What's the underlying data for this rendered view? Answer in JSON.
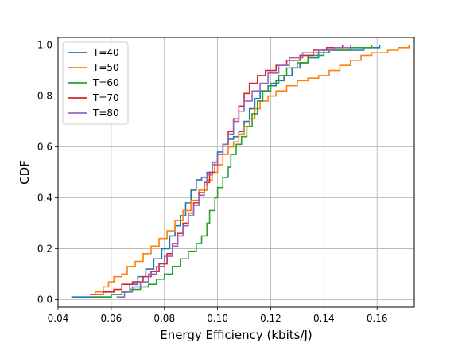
{
  "chart_data": {
    "type": "line",
    "step": true,
    "title": "",
    "xlabel": "Energy Efficiency (kbits/J)",
    "ylabel": "CDF",
    "xlim": [
      0.04,
      0.174
    ],
    "ylim": [
      -0.03,
      1.03
    ],
    "xticks": [
      "0.04",
      "0.06",
      "0.08",
      "0.10",
      "0.12",
      "0.14",
      "0.16"
    ],
    "yticks": [
      "0.0",
      "0.2",
      "0.4",
      "0.6",
      "0.8",
      "1.0"
    ],
    "grid": true,
    "legend_position": "top-left",
    "series": [
      {
        "name": "T=40",
        "color": "#1f77b4",
        "points": [
          [
            0.045,
            0.01
          ],
          [
            0.057,
            0.01
          ],
          [
            0.06,
            0.02
          ],
          [
            0.064,
            0.03
          ],
          [
            0.067,
            0.06
          ],
          [
            0.07,
            0.09
          ],
          [
            0.073,
            0.12
          ],
          [
            0.076,
            0.16
          ],
          [
            0.079,
            0.2
          ],
          [
            0.082,
            0.25
          ],
          [
            0.084,
            0.29
          ],
          [
            0.086,
            0.33
          ],
          [
            0.088,
            0.38
          ],
          [
            0.09,
            0.43
          ],
          [
            0.092,
            0.47
          ],
          [
            0.094,
            0.48
          ],
          [
            0.096,
            0.5
          ],
          [
            0.098,
            0.54
          ],
          [
            0.1,
            0.58
          ],
          [
            0.102,
            0.61
          ],
          [
            0.104,
            0.63
          ],
          [
            0.106,
            0.64
          ],
          [
            0.108,
            0.66
          ],
          [
            0.11,
            0.7
          ],
          [
            0.112,
            0.75
          ],
          [
            0.114,
            0.79
          ],
          [
            0.116,
            0.82
          ],
          [
            0.119,
            0.84
          ],
          [
            0.122,
            0.86
          ],
          [
            0.125,
            0.88
          ],
          [
            0.128,
            0.91
          ],
          [
            0.131,
            0.93
          ],
          [
            0.134,
            0.95
          ],
          [
            0.138,
            0.97
          ],
          [
            0.142,
            0.98
          ],
          [
            0.15,
            0.98
          ],
          [
            0.155,
            0.99
          ],
          [
            0.161,
            1.0
          ]
        ]
      },
      {
        "name": "T=50",
        "color": "#ff7f0e",
        "points": [
          [
            0.052,
            0.02
          ],
          [
            0.054,
            0.03
          ],
          [
            0.057,
            0.05
          ],
          [
            0.059,
            0.07
          ],
          [
            0.061,
            0.09
          ],
          [
            0.064,
            0.1
          ],
          [
            0.066,
            0.13
          ],
          [
            0.069,
            0.15
          ],
          [
            0.072,
            0.18
          ],
          [
            0.075,
            0.21
          ],
          [
            0.078,
            0.24
          ],
          [
            0.081,
            0.27
          ],
          [
            0.084,
            0.31
          ],
          [
            0.087,
            0.35
          ],
          [
            0.09,
            0.39
          ],
          [
            0.093,
            0.43
          ],
          [
            0.096,
            0.47
          ],
          [
            0.098,
            0.5
          ],
          [
            0.1,
            0.53
          ],
          [
            0.102,
            0.57
          ],
          [
            0.104,
            0.6
          ],
          [
            0.106,
            0.62
          ],
          [
            0.108,
            0.65
          ],
          [
            0.11,
            0.68
          ],
          [
            0.112,
            0.71
          ],
          [
            0.114,
            0.75
          ],
          [
            0.116,
            0.78
          ],
          [
            0.119,
            0.8
          ],
          [
            0.122,
            0.82
          ],
          [
            0.126,
            0.84
          ],
          [
            0.13,
            0.86
          ],
          [
            0.134,
            0.87
          ],
          [
            0.138,
            0.88
          ],
          [
            0.142,
            0.9
          ],
          [
            0.146,
            0.92
          ],
          [
            0.15,
            0.94
          ],
          [
            0.154,
            0.96
          ],
          [
            0.158,
            0.97
          ],
          [
            0.164,
            0.98
          ],
          [
            0.168,
            0.99
          ],
          [
            0.172,
            1.0
          ]
        ]
      },
      {
        "name": "T=60",
        "color": "#2ca02c",
        "points": [
          [
            0.053,
            0.01
          ],
          [
            0.06,
            0.02
          ],
          [
            0.064,
            0.03
          ],
          [
            0.067,
            0.04
          ],
          [
            0.071,
            0.05
          ],
          [
            0.074,
            0.06
          ],
          [
            0.077,
            0.08
          ],
          [
            0.08,
            0.1
          ],
          [
            0.083,
            0.13
          ],
          [
            0.086,
            0.16
          ],
          [
            0.089,
            0.19
          ],
          [
            0.092,
            0.22
          ],
          [
            0.094,
            0.25
          ],
          [
            0.096,
            0.3
          ],
          [
            0.097,
            0.35
          ],
          [
            0.099,
            0.4
          ],
          [
            0.1,
            0.44
          ],
          [
            0.102,
            0.48
          ],
          [
            0.104,
            0.52
          ],
          [
            0.105,
            0.57
          ],
          [
            0.107,
            0.61
          ],
          [
            0.109,
            0.64
          ],
          [
            0.111,
            0.68
          ],
          [
            0.113,
            0.73
          ],
          [
            0.115,
            0.78
          ],
          [
            0.117,
            0.82
          ],
          [
            0.12,
            0.85
          ],
          [
            0.123,
            0.88
          ],
          [
            0.126,
            0.91
          ],
          [
            0.13,
            0.93
          ],
          [
            0.134,
            0.96
          ],
          [
            0.14,
            0.98
          ],
          [
            0.15,
            0.99
          ],
          [
            0.158,
            1.0
          ]
        ]
      },
      {
        "name": "T=70",
        "color": "#d62728",
        "points": [
          [
            0.052,
            0.02
          ],
          [
            0.057,
            0.03
          ],
          [
            0.061,
            0.04
          ],
          [
            0.064,
            0.06
          ],
          [
            0.068,
            0.07
          ],
          [
            0.072,
            0.09
          ],
          [
            0.075,
            0.11
          ],
          [
            0.078,
            0.14
          ],
          [
            0.081,
            0.18
          ],
          [
            0.083,
            0.22
          ],
          [
            0.085,
            0.26
          ],
          [
            0.087,
            0.3
          ],
          [
            0.089,
            0.34
          ],
          [
            0.091,
            0.38
          ],
          [
            0.093,
            0.42
          ],
          [
            0.095,
            0.46
          ],
          [
            0.097,
            0.5
          ],
          [
            0.099,
            0.54
          ],
          [
            0.1,
            0.57
          ],
          [
            0.102,
            0.61
          ],
          [
            0.104,
            0.66
          ],
          [
            0.106,
            0.71
          ],
          [
            0.108,
            0.76
          ],
          [
            0.11,
            0.81
          ],
          [
            0.112,
            0.85
          ],
          [
            0.115,
            0.88
          ],
          [
            0.118,
            0.9
          ],
          [
            0.122,
            0.92
          ],
          [
            0.126,
            0.94
          ],
          [
            0.131,
            0.96
          ],
          [
            0.136,
            0.98
          ],
          [
            0.141,
            0.99
          ],
          [
            0.147,
            1.0
          ]
        ]
      },
      {
        "name": "T=80",
        "color": "#9467bd",
        "points": [
          [
            0.062,
            0.01
          ],
          [
            0.065,
            0.03
          ],
          [
            0.068,
            0.05
          ],
          [
            0.071,
            0.07
          ],
          [
            0.074,
            0.1
          ],
          [
            0.077,
            0.13
          ],
          [
            0.08,
            0.17
          ],
          [
            0.083,
            0.21
          ],
          [
            0.085,
            0.25
          ],
          [
            0.087,
            0.29
          ],
          [
            0.089,
            0.33
          ],
          [
            0.091,
            0.37
          ],
          [
            0.093,
            0.41
          ],
          [
            0.095,
            0.45
          ],
          [
            0.096,
            0.49
          ],
          [
            0.098,
            0.53
          ],
          [
            0.1,
            0.57
          ],
          [
            0.102,
            0.61
          ],
          [
            0.104,
            0.65
          ],
          [
            0.106,
            0.7
          ],
          [
            0.108,
            0.74
          ],
          [
            0.11,
            0.78
          ],
          [
            0.113,
            0.82
          ],
          [
            0.116,
            0.85
          ],
          [
            0.119,
            0.89
          ],
          [
            0.123,
            0.92
          ],
          [
            0.127,
            0.95
          ],
          [
            0.132,
            0.97
          ],
          [
            0.138,
            0.98
          ],
          [
            0.144,
            0.99
          ],
          [
            0.15,
            1.0
          ]
        ]
      }
    ]
  }
}
